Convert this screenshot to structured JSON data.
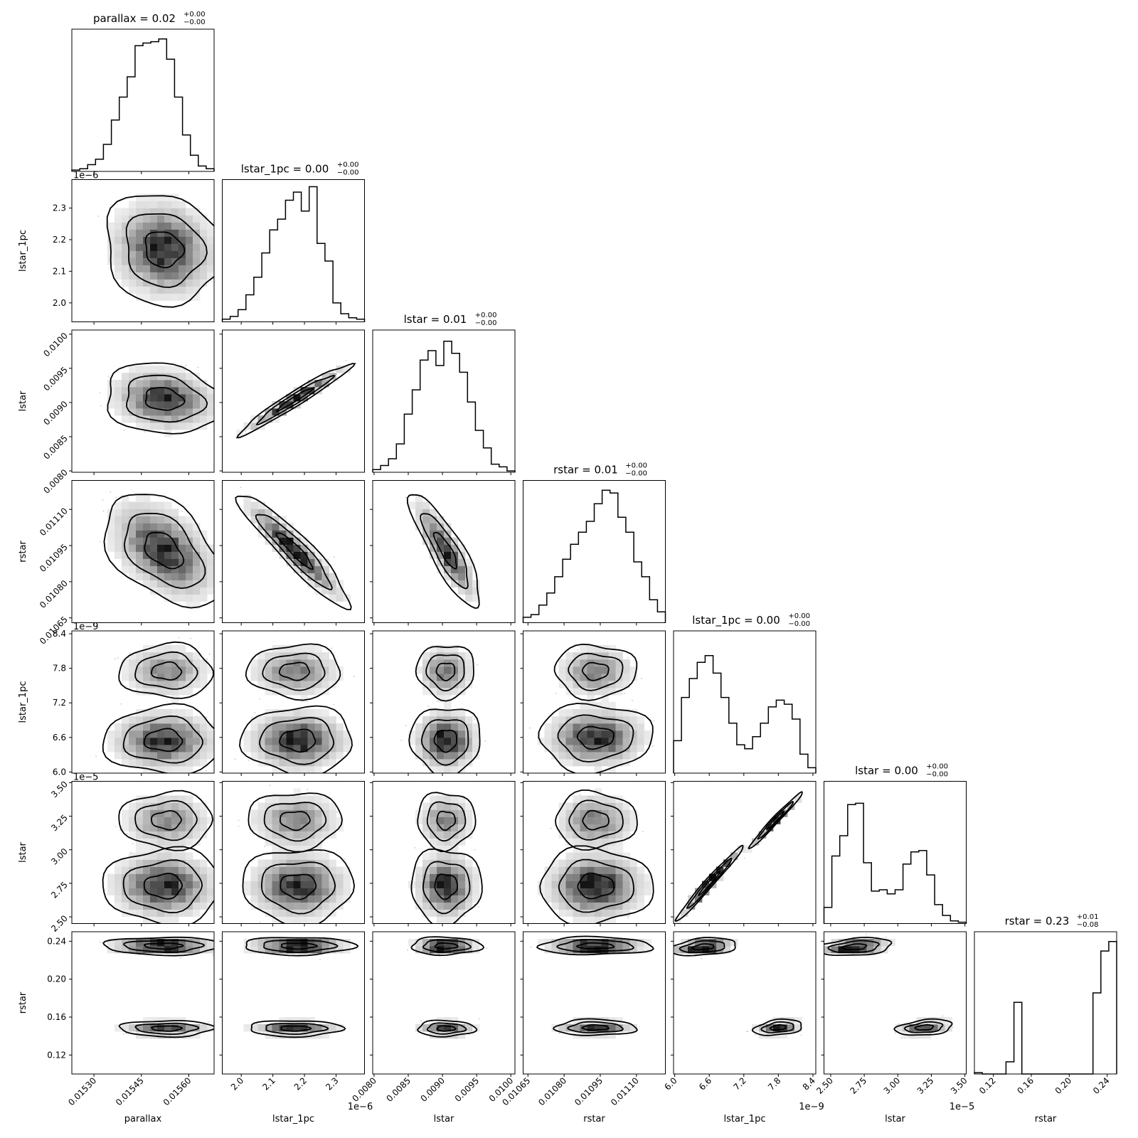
{
  "chart_data": {
    "type": "corner",
    "parameters": [
      "parallax",
      "lstar_1pc",
      "lstar",
      "rstar",
      "lstar_1pc",
      "lstar",
      "rstar"
    ],
    "titles": [
      {
        "name": "parallax",
        "value": "0.02",
        "plus": "+0.00",
        "minus": "−0.00"
      },
      {
        "name": "lstar_1pc",
        "value": "0.00",
        "plus": "+0.00",
        "minus": "−0.00"
      },
      {
        "name": "lstar",
        "value": "0.01",
        "plus": "+0.00",
        "minus": "−0.00"
      },
      {
        "name": "rstar",
        "value": "0.01",
        "plus": "+0.00",
        "minus": "−0.00"
      },
      {
        "name": "lstar_1pc",
        "value": "0.00",
        "plus": "+0.00",
        "minus": "−0.00"
      },
      {
        "name": "lstar",
        "value": "0.00",
        "plus": "+0.00",
        "minus": "−0.00"
      },
      {
        "name": "rstar",
        "value": "0.23",
        "plus": "+0.01",
        "minus": "−0.08"
      }
    ],
    "axes": [
      {
        "range": [
          0.01523,
          0.01568
        ],
        "ticks": [
          0.0153,
          0.01545,
          0.0156
        ],
        "tick_labels": [
          "0.01530",
          "0.01545",
          "0.01560"
        ],
        "offset_text": ""
      },
      {
        "range": [
          1.94,
          2.39
        ],
        "ticks": [
          2.0,
          2.1,
          2.2,
          2.3
        ],
        "tick_labels": [
          "2.0",
          "2.1",
          "2.2",
          "2.3"
        ],
        "offset_text": "1e−6"
      },
      {
        "range": [
          0.00798,
          0.01006
        ],
        "ticks": [
          0.008,
          0.0085,
          0.009,
          0.0095,
          0.01
        ],
        "tick_labels": [
          "0.0080",
          "0.0085",
          "0.0090",
          "0.0095",
          "0.0100"
        ],
        "offset_text": ""
      },
      {
        "range": [
          0.01063,
          0.01122
        ],
        "ticks": [
          0.01065,
          0.0108,
          0.01095,
          0.0111
        ],
        "tick_labels": [
          "0.01065",
          "0.01080",
          "0.01095",
          "0.01110"
        ],
        "offset_text": ""
      },
      {
        "range": [
          5.98,
          8.45
        ],
        "ticks": [
          6.0,
          6.6,
          7.2,
          7.8,
          8.4
        ],
        "tick_labels": [
          "6.0",
          "6.6",
          "7.2",
          "7.8",
          "8.4"
        ],
        "offset_text": "1e−9"
      },
      {
        "range": [
          2.45,
          3.51
        ],
        "ticks": [
          2.5,
          2.75,
          3.0,
          3.25,
          3.5
        ],
        "tick_labels": [
          "2.50",
          "2.75",
          "3.00",
          "3.25",
          "3.50"
        ],
        "offset_text": "1e−5"
      },
      {
        "range": [
          0.1,
          0.25
        ],
        "ticks": [
          0.12,
          0.16,
          0.2,
          0.24
        ],
        "tick_labels": [
          "0.12",
          "0.16",
          "0.20",
          "0.24"
        ],
        "offset_text": ""
      }
    ],
    "histograms": [
      [
        0.01,
        0.02,
        0.05,
        0.09,
        0.2,
        0.38,
        0.55,
        0.7,
        0.93,
        0.95,
        0.96,
        0.98,
        0.83,
        0.55,
        0.27,
        0.12,
        0.04,
        0.02
      ],
      [
        0.02,
        0.04,
        0.09,
        0.2,
        0.33,
        0.51,
        0.68,
        0.76,
        0.9,
        0.96,
        0.82,
        1.0,
        0.58,
        0.45,
        0.14,
        0.06,
        0.03,
        0.02
      ],
      [
        0.02,
        0.05,
        0.1,
        0.21,
        0.43,
        0.61,
        0.83,
        0.9,
        0.79,
        0.97,
        0.88,
        0.74,
        0.52,
        0.31,
        0.18,
        0.06,
        0.04,
        0.01
      ],
      [
        0.04,
        0.06,
        0.13,
        0.22,
        0.34,
        0.47,
        0.58,
        0.67,
        0.75,
        0.88,
        0.98,
        0.96,
        0.78,
        0.67,
        0.45,
        0.34,
        0.17,
        0.08
      ],
      [
        0.24,
        0.56,
        0.7,
        0.82,
        0.87,
        0.74,
        0.56,
        0.37,
        0.21,
        0.18,
        0.27,
        0.37,
        0.49,
        0.54,
        0.51,
        0.4,
        0.14,
        0.04
      ],
      [
        0.12,
        0.5,
        0.65,
        0.88,
        0.89,
        0.45,
        0.24,
        0.25,
        0.22,
        0.25,
        0.44,
        0.53,
        0.54,
        0.36,
        0.14,
        0.06,
        0.02,
        0.01
      ],
      [
        0.01,
        0.0,
        0.0,
        0.0,
        0.09,
        0.53,
        0.0,
        0.0,
        0.0,
        0.0,
        0.0,
        0.0,
        0.0,
        0.0,
        0.0,
        0.6,
        0.91,
        0.98
      ]
    ],
    "pairs": [
      {
        "row": 1,
        "col": 0,
        "modes": [
          {
            "cx": 0.01552,
            "cy": 2.17,
            "sx": 8e-05,
            "sy": 0.075,
            "rho": -0.1
          }
        ]
      },
      {
        "row": 2,
        "col": 0,
        "modes": [
          {
            "cx": 0.01552,
            "cy": 0.00905,
            "sx": 8e-05,
            "sy": 0.00022,
            "rho": -0.15
          }
        ]
      },
      {
        "row": 2,
        "col": 1,
        "modes": [
          {
            "cx": 2.17,
            "cy": 0.00905,
            "sx": 0.075,
            "sy": 0.00022,
            "rho": 0.97
          }
        ]
      },
      {
        "row": 3,
        "col": 0,
        "modes": [
          {
            "cx": 0.01552,
            "cy": 0.01093,
            "sx": 8e-05,
            "sy": 0.0001,
            "rho": -0.45
          }
        ]
      },
      {
        "row": 3,
        "col": 1,
        "modes": [
          {
            "cx": 2.17,
            "cy": 0.01093,
            "sx": 0.075,
            "sy": 0.0001,
            "rho": -0.93
          }
        ]
      },
      {
        "row": 3,
        "col": 2,
        "modes": [
          {
            "cx": 0.00905,
            "cy": 0.01093,
            "sx": 0.00022,
            "sy": 0.0001,
            "rho": -0.85
          }
        ]
      },
      {
        "row": 4,
        "col": 0,
        "modes": [
          {
            "cx": 0.01552,
            "cy": 6.55,
            "sx": 8e-05,
            "sy": 0.25,
            "rho": 0.0,
            "w": 0.62
          },
          {
            "cx": 0.01553,
            "cy": 7.75,
            "sx": 7e-05,
            "sy": 0.22,
            "rho": 0.0,
            "w": 0.38
          }
        ]
      },
      {
        "row": 4,
        "col": 1,
        "modes": [
          {
            "cx": 2.18,
            "cy": 6.55,
            "sx": 0.075,
            "sy": 0.25,
            "rho": 0.0,
            "w": 0.62
          },
          {
            "cx": 2.17,
            "cy": 7.75,
            "sx": 0.07,
            "sy": 0.22,
            "rho": 0.0,
            "w": 0.38
          }
        ]
      },
      {
        "row": 4,
        "col": 2,
        "modes": [
          {
            "cx": 0.00905,
            "cy": 6.55,
            "sx": 0.00022,
            "sy": 0.25,
            "rho": 0.0,
            "w": 0.62
          },
          {
            "cx": 0.00905,
            "cy": 7.75,
            "sx": 0.0002,
            "sy": 0.22,
            "rho": 0.0,
            "w": 0.38
          }
        ]
      },
      {
        "row": 4,
        "col": 3,
        "modes": [
          {
            "cx": 0.01093,
            "cy": 6.6,
            "sx": 0.0001,
            "sy": 0.25,
            "rho": 0.0,
            "w": 0.62
          },
          {
            "cx": 0.01093,
            "cy": 7.75,
            "sx": 8e-05,
            "sy": 0.22,
            "rho": 0.0,
            "w": 0.38
          }
        ]
      },
      {
        "row": 5,
        "col": 0,
        "modes": [
          {
            "cx": 0.01552,
            "cy": 2.73,
            "sx": 8e-05,
            "sy": 0.12,
            "rho": 0.0,
            "w": 0.62
          },
          {
            "cx": 0.01553,
            "cy": 3.22,
            "sx": 7e-05,
            "sy": 0.1,
            "rho": 0.0,
            "w": 0.38
          }
        ]
      },
      {
        "row": 5,
        "col": 1,
        "modes": [
          {
            "cx": 2.18,
            "cy": 2.73,
            "sx": 0.075,
            "sy": 0.12,
            "rho": 0.0,
            "w": 0.62
          },
          {
            "cx": 2.17,
            "cy": 3.22,
            "sx": 0.07,
            "sy": 0.1,
            "rho": 0.0,
            "w": 0.38
          }
        ]
      },
      {
        "row": 5,
        "col": 2,
        "modes": [
          {
            "cx": 0.00905,
            "cy": 2.73,
            "sx": 0.00022,
            "sy": 0.12,
            "rho": 0.0,
            "w": 0.62
          },
          {
            "cx": 0.00905,
            "cy": 3.22,
            "sx": 0.0002,
            "sy": 0.1,
            "rho": 0.0,
            "w": 0.38
          }
        ]
      },
      {
        "row": 5,
        "col": 3,
        "modes": [
          {
            "cx": 0.01093,
            "cy": 2.73,
            "sx": 0.0001,
            "sy": 0.12,
            "rho": 0.0,
            "w": 0.62
          },
          {
            "cx": 0.01093,
            "cy": 3.22,
            "sx": 8e-05,
            "sy": 0.1,
            "rho": 0.0,
            "w": 0.38
          }
        ]
      },
      {
        "row": 5,
        "col": 4,
        "modes": [
          {
            "cx": 6.6,
            "cy": 2.75,
            "sx": 0.25,
            "sy": 0.12,
            "rho": 0.985,
            "w": 0.62
          },
          {
            "cx": 7.75,
            "cy": 3.22,
            "sx": 0.22,
            "sy": 0.1,
            "rho": 0.985,
            "w": 0.38
          }
        ]
      },
      {
        "row": 6,
        "col": 0,
        "modes": [
          {
            "cx": 0.01552,
            "cy": 0.235,
            "sx": 8e-05,
            "sy": 0.004,
            "rho": 0.0,
            "w": 0.62
          },
          {
            "cx": 0.01553,
            "cy": 0.148,
            "sx": 7e-05,
            "sy": 0.004,
            "rho": 0.0,
            "w": 0.38
          }
        ]
      },
      {
        "row": 6,
        "col": 1,
        "modes": [
          {
            "cx": 2.18,
            "cy": 0.235,
            "sx": 0.075,
            "sy": 0.004,
            "rho": 0.0,
            "w": 0.62
          },
          {
            "cx": 2.17,
            "cy": 0.148,
            "sx": 0.07,
            "sy": 0.004,
            "rho": 0.0,
            "w": 0.38
          }
        ]
      },
      {
        "row": 6,
        "col": 2,
        "modes": [
          {
            "cx": 0.00905,
            "cy": 0.235,
            "sx": 0.00022,
            "sy": 0.004,
            "rho": 0.0,
            "w": 0.62
          },
          {
            "cx": 0.00905,
            "cy": 0.148,
            "sx": 0.0002,
            "sy": 0.004,
            "rho": 0.0,
            "w": 0.38
          }
        ]
      },
      {
        "row": 6,
        "col": 3,
        "modes": [
          {
            "cx": 0.01093,
            "cy": 0.235,
            "sx": 0.0001,
            "sy": 0.004,
            "rho": 0.0,
            "w": 0.62
          },
          {
            "cx": 0.01093,
            "cy": 0.149,
            "sx": 8e-05,
            "sy": 0.004,
            "rho": 0.0,
            "w": 0.38
          }
        ]
      },
      {
        "row": 6,
        "col": 4,
        "modes": [
          {
            "cx": 6.5,
            "cy": 0.234,
            "sx": 0.25,
            "sy": 0.004,
            "rho": 0.3,
            "w": 0.62
          },
          {
            "cx": 7.8,
            "cy": 0.149,
            "sx": 0.2,
            "sy": 0.004,
            "rho": 0.3,
            "w": 0.38
          }
        ]
      },
      {
        "row": 6,
        "col": 5,
        "modes": [
          {
            "cx": 2.68,
            "cy": 0.234,
            "sx": 0.12,
            "sy": 0.004,
            "rho": 0.3,
            "w": 0.62
          },
          {
            "cx": 3.2,
            "cy": 0.149,
            "sx": 0.1,
            "sy": 0.004,
            "rho": 0.3,
            "w": 0.38
          }
        ]
      }
    ]
  }
}
